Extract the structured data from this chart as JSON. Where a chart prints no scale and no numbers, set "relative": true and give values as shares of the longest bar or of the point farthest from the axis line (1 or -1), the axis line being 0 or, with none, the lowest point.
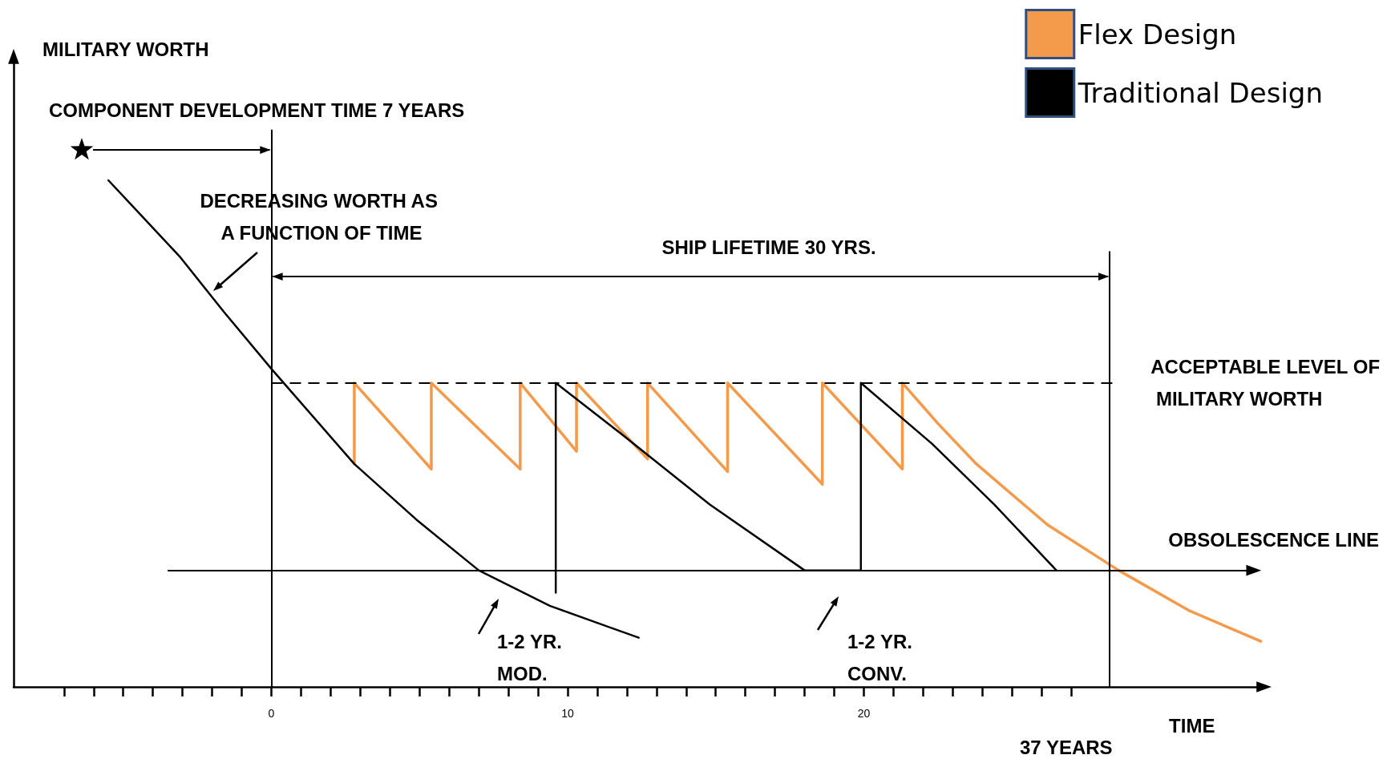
{
  "chart_data": {
    "type": "line",
    "relative": true,
    "xlabel": "TIME",
    "xlim": [
      -8.7,
      33.6
    ],
    "xticks": [
      {
        "value": -7,
        "label": null
      },
      {
        "value": -6,
        "label": null
      },
      {
        "value": -5,
        "label": null
      },
      {
        "value": -4,
        "label": null
      },
      {
        "value": -3,
        "label": null
      },
      {
        "value": -2,
        "label": null
      },
      {
        "value": -1,
        "label": null
      },
      0,
      {
        "value": 1,
        "label": null
      },
      {
        "value": 2,
        "label": null
      },
      {
        "value": 3,
        "label": null
      },
      {
        "value": 4,
        "label": null
      },
      {
        "value": 5,
        "label": null
      },
      {
        "value": 6,
        "label": null
      },
      {
        "value": 7,
        "label": null
      },
      {
        "value": 8,
        "label": null
      },
      {
        "value": 9,
        "label": null
      },
      10,
      {
        "value": 11,
        "label": null
      },
      {
        "value": 12,
        "label": null
      },
      {
        "value": 13,
        "label": null
      },
      {
        "value": 14,
        "label": null
      },
      {
        "value": 15,
        "label": null
      },
      {
        "value": 16,
        "label": null
      },
      {
        "value": 17,
        "label": null
      },
      {
        "value": 18,
        "label": null
      },
      {
        "value": 19,
        "label": null
      },
      20,
      {
        "value": 21,
        "label": null
      },
      {
        "value": 22,
        "label": null
      },
      {
        "value": 23,
        "label": null
      },
      {
        "value": 24,
        "label": null
      },
      {
        "value": 25,
        "label": null
      },
      {
        "value": 26,
        "label": null
      },
      {
        "value": 27,
        "label": null
      }
    ],
    "series": [
      {
        "name": "Flex Design",
        "color": "#f39a4b",
        "x": [
          2.8,
          2.8,
          5.4,
          5.4,
          8.4,
          8.4,
          10.3,
          10.3,
          12.7,
          12.7,
          15.4,
          15.4,
          18.6,
          18.6,
          21.3,
          21.3,
          22.5,
          23.8,
          26.2,
          28.6,
          31.0,
          33.4
        ],
        "values": [
          0.44,
          0.6,
          0.43,
          0.6,
          0.43,
          0.6,
          0.465,
          0.6,
          0.45,
          0.6,
          0.425,
          0.6,
          0.4,
          0.6,
          0.43,
          0.6,
          0.52,
          0.44,
          0.32,
          0.23,
          0.15,
          0.09
        ]
      },
      {
        "name": "Traditional Design",
        "color": "#000000",
        "x": [
          -5.5,
          -3.1,
          -1.6,
          0,
          2.8,
          4.9,
          7.0,
          9.4,
          12.4
        ],
        "values": [
          1.0,
          0.85,
          0.74,
          0.628,
          0.44,
          0.33,
          0.23,
          0.16,
          0.097
        ]
      },
      {
        "color": "#000000",
        "x": [
          9.6,
          9.6,
          11.8,
          14.8,
          18.0,
          19.9,
          19.9,
          22.3,
          24.4,
          26.5
        ],
        "values": [
          0.186,
          0.6,
          0.5,
          0.36,
          0.23,
          0.23,
          0.6,
          0.48,
          0.36,
          0.23
        ]
      }
    ],
    "ref_lines": [
      {
        "axis": "y",
        "value": 0.6,
        "label": "ACCEPTABLE LEVEL OF MILITARY WORTH",
        "color": "#000000",
        "line_style": "dashed"
      },
      {
        "axis": "y",
        "value": 0.23,
        "label": "OBSOLESCENCE LINE",
        "color": "#000000",
        "line_style": "solid"
      },
      {
        "axis": "x",
        "value": 0,
        "color": "#000000",
        "line_style": "solid"
      },
      {
        "axis": "x",
        "value": 28.3,
        "color": "#000000",
        "line_style": "solid"
      }
    ],
    "annotations": [
      "MILITARY WORTH",
      "COMPONENT DEVELOPMENT TIME 7 YEARS",
      "DECREASING WORTH AS A FUNCTION OF TIME",
      "SHIP LIFETIME 30 YRS.",
      "1-2 YR. MOD.",
      "1-2 YR. CONV.",
      "37 YEARS"
    ],
    "legend": "top right",
    "grid": false,
    "marker": "none",
    "line_style": "solid"
  }
}
